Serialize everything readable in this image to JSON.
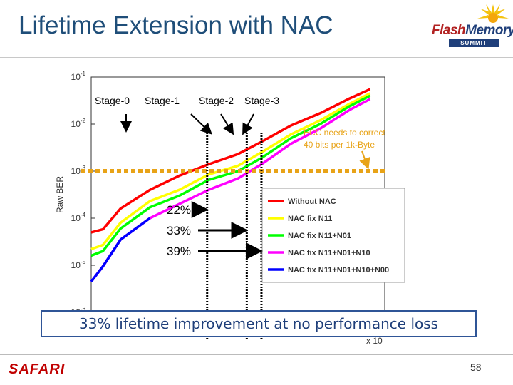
{
  "slide": {
    "title": "Lifetime Extension with NAC",
    "improvement": "33% lifetime improvement at no performance loss",
    "footer_brand": "SAFARI",
    "page_number": "58"
  },
  "logo": {
    "name_part1": "Flash",
    "name_part2": "Memory",
    "subtitle": "SUMMIT"
  },
  "colors": {
    "title": "#1f4e79",
    "box_border": "#2f5597",
    "threshold": "#e8a317",
    "footer_brand": "#c00000"
  },
  "chart_data": {
    "type": "line",
    "ylabel": "Raw BER",
    "yscale": "log",
    "ylim": [
      1e-06,
      0.1
    ],
    "yticks": [
      {
        "value": 0.1,
        "label": "10^-1"
      },
      {
        "value": 0.01,
        "label": "10^-2"
      },
      {
        "value": 0.001,
        "label": "10^-3"
      },
      {
        "value": 0.0001,
        "label": "10^-4"
      },
      {
        "value": 1e-05,
        "label": "10^-5"
      },
      {
        "value": 1e-06,
        "label": "10^-6"
      }
    ],
    "xlim": [
      0,
      1
    ],
    "x_axis_exponent": "x 10",
    "grid": false,
    "legend_position": "bottom-right",
    "series": [
      {
        "name": "Without NAC",
        "color": "#ff0000",
        "x": [
          0.0,
          0.04,
          0.1,
          0.2,
          0.3,
          0.4,
          0.5,
          0.58,
          0.68,
          0.78,
          0.88,
          0.95
        ],
        "y": [
          5e-05,
          5.8e-05,
          0.00016,
          0.0004,
          0.0008,
          0.0014,
          0.0023,
          0.0042,
          0.0093,
          0.017,
          0.035,
          0.055
        ]
      },
      {
        "name": "NAC fix N11",
        "color": "#ffff00",
        "x": [
          0.0,
          0.04,
          0.1,
          0.2,
          0.3,
          0.4,
          0.5,
          0.58,
          0.68,
          0.78,
          0.88,
          0.95
        ],
        "y": [
          2.2e-05,
          2.7e-05,
          8e-05,
          0.00023,
          0.0004,
          0.00085,
          0.0013,
          0.0025,
          0.006,
          0.012,
          0.027,
          0.045
        ]
      },
      {
        "name": "NAC fix N11+N01",
        "color": "#00ff00",
        "x": [
          0.0,
          0.04,
          0.1,
          0.2,
          0.3,
          0.4,
          0.5,
          0.58,
          0.68,
          0.78,
          0.88,
          0.95
        ],
        "y": [
          1.6e-05,
          2e-05,
          6e-05,
          0.00017,
          0.0003,
          0.00065,
          0.001,
          0.0019,
          0.005,
          0.01,
          0.024,
          0.04
        ]
      },
      {
        "name": "NAC fix N11+N01+N10",
        "color": "#ff00ff",
        "x": [
          0.0,
          0.04,
          0.1,
          0.2,
          0.3,
          0.4,
          0.5,
          0.58,
          0.68,
          0.78,
          0.88,
          0.95
        ],
        "y": [
          4.5e-06,
          9.5e-06,
          3.5e-05,
          0.0001,
          0.0002,
          0.0004,
          0.0007,
          0.0014,
          0.0038,
          0.008,
          0.02,
          0.034
        ]
      },
      {
        "name": "NAC fix N11+N01+N10+N00",
        "color": "#0000ff",
        "x": [
          0.0,
          0.04,
          0.1,
          0.2
        ],
        "y": [
          4.5e-06,
          9.5e-06,
          3.5e-05,
          0.0001
        ]
      }
    ],
    "threshold": {
      "value": 0.001
    },
    "stage_labels": [
      "Stage-0",
      "Stage-1",
      "Stage-2",
      "Stage-3"
    ],
    "stage_x": [
      0.395,
      0.53,
      0.58
    ],
    "ecc_annotation": [
      "ECC needs to correct",
      "40 bits per 1k-Byte"
    ],
    "improvement_labels": [
      "22%",
      "33%",
      "39%"
    ]
  }
}
